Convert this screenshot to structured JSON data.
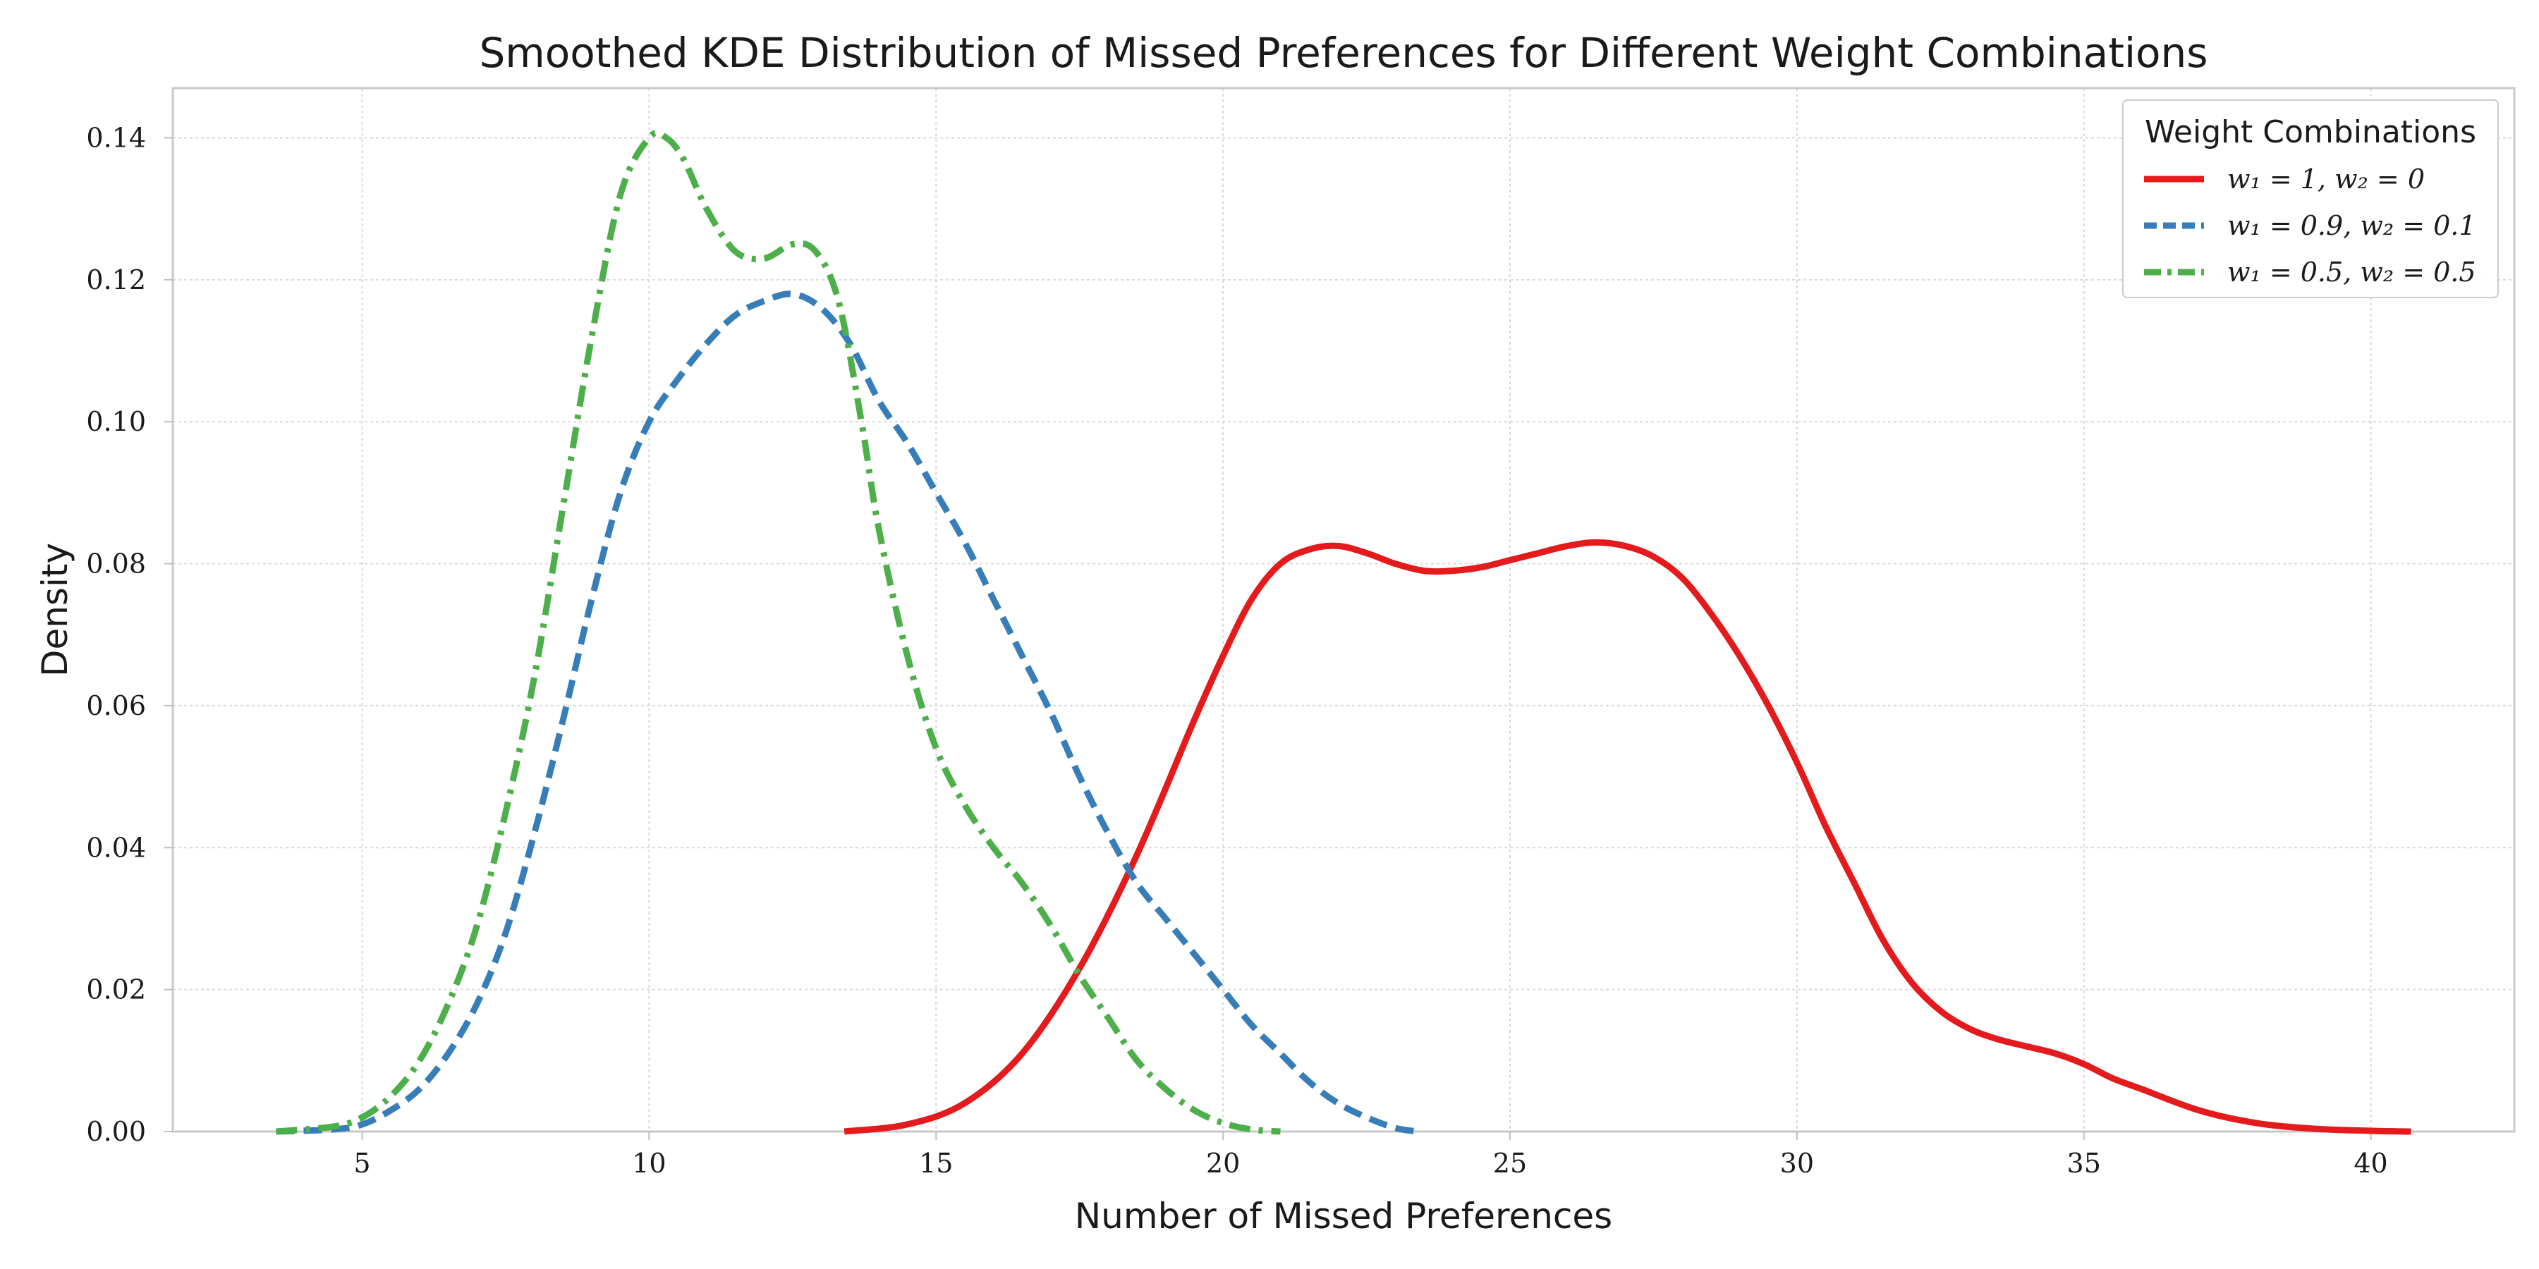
{
  "chart_data": {
    "type": "line",
    "title": "Smoothed KDE Distribution of Missed Preferences for Different Weight Combinations",
    "xlabel": "Number of Missed Preferences",
    "ylabel": "Density",
    "xlim": [
      1.7,
      42.5
    ],
    "ylim": [
      0,
      0.147
    ],
    "xticks": [
      5,
      10,
      15,
      20,
      25,
      30,
      35,
      40
    ],
    "xtick_labels": [
      "5",
      "10",
      "15",
      "20",
      "25",
      "30",
      "35",
      "40"
    ],
    "yticks": [
      0,
      0.02,
      0.04,
      0.06,
      0.08,
      0.1,
      0.12,
      0.14
    ],
    "ytick_labels": [
      "0.00",
      "0.02",
      "0.04",
      "0.06",
      "0.08",
      "0.10",
      "0.12",
      "0.14"
    ],
    "grid": true,
    "legend": {
      "title": "Weight Combinations",
      "position": "top-right"
    },
    "series": [
      {
        "name": "w_1 = 1, w_2 = 0",
        "label": "w₁ = 1, w₂ = 0",
        "color": "#e41a1c",
        "linestyle": "solid",
        "x": [
          13.4,
          14.5,
          15.5,
          16.5,
          17.5,
          18.5,
          19.5,
          20.0,
          20.5,
          21.0,
          21.5,
          22.0,
          22.5,
          23.0,
          23.5,
          24.0,
          24.5,
          25.0,
          25.5,
          26.0,
          26.5,
          27.0,
          27.5,
          28.0,
          28.5,
          29.0,
          29.5,
          30.0,
          30.5,
          31.0,
          31.5,
          32.0,
          32.5,
          33.0,
          33.5,
          34.0,
          34.5,
          35.0,
          35.5,
          36.0,
          37.0,
          38.0,
          39.0,
          40.0,
          40.7
        ],
        "y": [
          0.0,
          0.001,
          0.004,
          0.011,
          0.023,
          0.039,
          0.058,
          0.067,
          0.075,
          0.08,
          0.082,
          0.0825,
          0.0815,
          0.08,
          0.079,
          0.079,
          0.0795,
          0.0805,
          0.0815,
          0.0825,
          0.083,
          0.0825,
          0.081,
          0.078,
          0.073,
          0.067,
          0.06,
          0.052,
          0.043,
          0.035,
          0.027,
          0.021,
          0.017,
          0.0145,
          0.013,
          0.012,
          0.011,
          0.0095,
          0.0075,
          0.006,
          0.003,
          0.0012,
          0.0004,
          0.0001,
          0.0
        ]
      },
      {
        "name": "w_1 = 0.9, w_2 = 0.1",
        "label": "w₁ = 0.9, w₂ = 0.1",
        "color": "#377eb8",
        "linestyle": "dashed",
        "x": [
          3.5,
          4.5,
          5.0,
          5.5,
          6.0,
          6.5,
          7.0,
          7.5,
          8.0,
          8.5,
          9.0,
          9.5,
          10.0,
          10.5,
          11.0,
          11.5,
          12.0,
          12.5,
          13.0,
          13.5,
          14.0,
          14.5,
          15.0,
          15.5,
          16.0,
          16.5,
          17.0,
          17.5,
          18.0,
          18.5,
          19.0,
          19.5,
          20.0,
          20.5,
          21.0,
          21.5,
          22.0,
          22.5,
          23.0,
          23.4
        ],
        "y": [
          0.0,
          0.0003,
          0.001,
          0.003,
          0.006,
          0.011,
          0.018,
          0.028,
          0.042,
          0.058,
          0.075,
          0.09,
          0.1,
          0.106,
          0.111,
          0.115,
          0.117,
          0.118,
          0.116,
          0.111,
          0.103,
          0.097,
          0.09,
          0.083,
          0.075,
          0.067,
          0.059,
          0.05,
          0.042,
          0.035,
          0.03,
          0.025,
          0.02,
          0.015,
          0.011,
          0.007,
          0.004,
          0.002,
          0.0005,
          0.0
        ]
      },
      {
        "name": "w_1 = 0.5, w_2 = 0.5",
        "label": "w₁ = 0.5, w₂ = 0.5",
        "color": "#4daf4a",
        "linestyle": "dashdot",
        "x": [
          3.5,
          4.5,
          5.0,
          5.5,
          6.0,
          6.5,
          7.0,
          7.5,
          8.0,
          8.5,
          9.0,
          9.5,
          10.0,
          10.3,
          10.6,
          11.0,
          11.5,
          12.0,
          12.5,
          12.9,
          13.3,
          13.7,
          14.0,
          14.5,
          15.0,
          15.5,
          16.0,
          16.5,
          17.0,
          17.5,
          18.0,
          18.5,
          19.0,
          19.5,
          20.0,
          20.5,
          21.0
        ],
        "y": [
          0.0,
          0.0007,
          0.002,
          0.005,
          0.01,
          0.018,
          0.029,
          0.045,
          0.064,
          0.088,
          0.112,
          0.132,
          0.14,
          0.14,
          0.137,
          0.13,
          0.124,
          0.123,
          0.125,
          0.124,
          0.117,
          0.1,
          0.085,
          0.067,
          0.054,
          0.046,
          0.04,
          0.035,
          0.029,
          0.022,
          0.016,
          0.01,
          0.006,
          0.003,
          0.0012,
          0.0003,
          0.0
        ]
      }
    ]
  }
}
